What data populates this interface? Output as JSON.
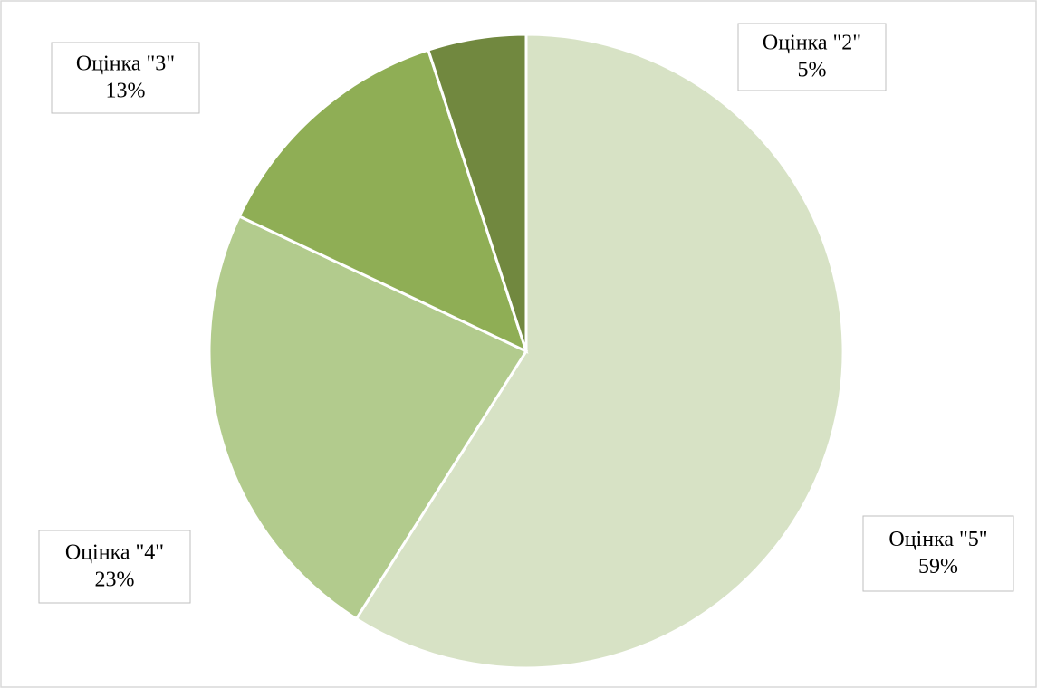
{
  "chart_data": {
    "type": "pie",
    "categories": [
      "Оцінка \"5\"",
      "Оцінка \"4\"",
      "Оцінка \"3\"",
      "Оцінка \"2\""
    ],
    "values": [
      59,
      23,
      13,
      5
    ],
    "value_labels": [
      "59%",
      "23%",
      "13%",
      "5%"
    ],
    "colors": [
      "#d7e2c5",
      "#b2cb8d",
      "#8fae55",
      "#71883f"
    ]
  }
}
